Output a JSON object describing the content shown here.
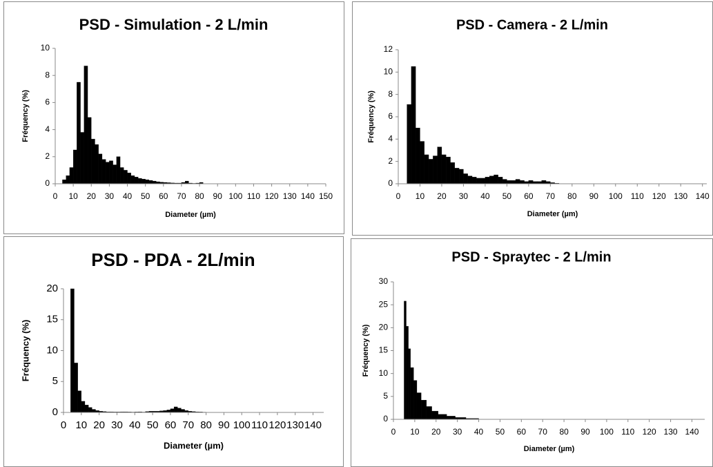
{
  "chart_data": [
    {
      "type": "histogram",
      "title": "PSD - Simulation - 2 L/min",
      "x_label": "Diameter (µm)",
      "y_label": "Fréquency (%)",
      "color": "#000000",
      "grid": false,
      "bins": [
        4,
        6,
        8,
        10,
        12,
        14,
        16,
        18,
        20,
        22,
        24,
        26,
        28,
        30,
        32,
        34,
        36,
        38,
        40,
        42,
        44,
        46,
        48,
        50,
        52,
        54,
        56,
        58,
        60,
        62,
        64,
        66,
        68,
        70,
        72,
        74,
        76,
        78,
        80,
        82
      ],
      "values": [
        0.3,
        0.6,
        1.2,
        2.5,
        7.5,
        3.8,
        8.7,
        4.9,
        3.3,
        2.9,
        2.2,
        1.8,
        1.6,
        1.7,
        1.4,
        2.0,
        1.2,
        1.0,
        0.8,
        0.6,
        0.5,
        0.4,
        0.35,
        0.3,
        0.25,
        0.2,
        0.15,
        0.12,
        0.1,
        0.08,
        0.06,
        0.05,
        0.05,
        0.1,
        0.2,
        0.05,
        0.03,
        0.05,
        0.1
      ],
      "xlim": [
        0,
        150
      ],
      "xticks": [
        0,
        10,
        20,
        30,
        40,
        50,
        60,
        70,
        80,
        90,
        100,
        110,
        120,
        130,
        140,
        150
      ],
      "ylim": [
        0,
        10
      ],
      "yticks": [
        0,
        2,
        4,
        6,
        8,
        10
      ]
    },
    {
      "type": "histogram",
      "title": "PSD - Camera - 2 L/min",
      "x_label": "Diameter (µm)",
      "y_label": "Fréquency (%)",
      "color": "#000000",
      "grid": false,
      "bins": [
        4,
        6,
        8,
        10,
        12,
        14,
        16,
        18,
        20,
        22,
        24,
        26,
        28,
        30,
        32,
        34,
        36,
        38,
        40,
        42,
        44,
        46,
        48,
        50,
        52,
        54,
        56,
        58,
        60,
        62,
        64,
        66,
        68,
        70,
        72,
        74
      ],
      "values": [
        7.1,
        10.5,
        5.0,
        3.8,
        2.6,
        2.2,
        2.5,
        3.3,
        2.6,
        2.4,
        1.9,
        1.4,
        1.3,
        0.9,
        0.7,
        0.6,
        0.5,
        0.5,
        0.6,
        0.7,
        0.8,
        0.6,
        0.4,
        0.3,
        0.3,
        0.4,
        0.3,
        0.2,
        0.3,
        0.2,
        0.2,
        0.3,
        0.2,
        0.1,
        0.05
      ],
      "xlim": [
        0,
        142
      ],
      "xticks": [
        0,
        10,
        20,
        30,
        40,
        50,
        60,
        70,
        80,
        90,
        100,
        110,
        120,
        130,
        140
      ],
      "ylim": [
        0,
        12
      ],
      "yticks": [
        0,
        2,
        4,
        6,
        8,
        10,
        12
      ]
    },
    {
      "type": "histogram",
      "title": "PSD - PDA - 2L/min",
      "x_label": "Diameter (µm)",
      "y_label": "Fréquency (%)",
      "color": "#000000",
      "grid": false,
      "bins": [
        4,
        6,
        8,
        10,
        12,
        14,
        16,
        18,
        20,
        22,
        24,
        26,
        28,
        30,
        32,
        34,
        36,
        38,
        40,
        42,
        44,
        46,
        48,
        50,
        52,
        54,
        56,
        58,
        60,
        62,
        64,
        66,
        68,
        70,
        72,
        74,
        76,
        78,
        80
      ],
      "values": [
        20,
        8,
        3.5,
        1.8,
        1.2,
        0.8,
        0.5,
        0.3,
        0.2,
        0.15,
        0.1,
        0.1,
        0.08,
        0.08,
        0.1,
        0.1,
        0.08,
        0.06,
        0.08,
        0.1,
        0.06,
        0.15,
        0.2,
        0.2,
        0.2,
        0.25,
        0.3,
        0.4,
        0.6,
        0.9,
        0.7,
        0.5,
        0.3,
        0.2,
        0.15,
        0.1,
        0.08,
        0.05
      ],
      "xlim": [
        0,
        146
      ],
      "xticks": [
        0,
        10,
        20,
        30,
        40,
        50,
        60,
        70,
        80,
        90,
        100,
        110,
        120,
        130,
        140
      ],
      "ylim": [
        0,
        20
      ],
      "yticks": [
        0,
        5,
        10,
        15,
        20
      ]
    },
    {
      "type": "histogram",
      "title": "PSD - Spraytec - 2 L/min",
      "x_label": "Diameter (µm)",
      "y_label": "Fréquency (%)",
      "color": "#000000",
      "grid": false,
      "bins": [
        5,
        6,
        7,
        8,
        9.5,
        11,
        13,
        15.5,
        18,
        21,
        25,
        29,
        34,
        40
      ],
      "values": [
        25.8,
        20.3,
        15.4,
        11.3,
        8.5,
        5.8,
        4.2,
        2.8,
        1.8,
        1.1,
        0.7,
        0.4,
        0.2
      ],
      "xlim": [
        0,
        146
      ],
      "xticks": [
        0,
        10,
        20,
        30,
        40,
        50,
        60,
        70,
        80,
        90,
        100,
        110,
        120,
        130,
        140
      ],
      "ylim": [
        0,
        30
      ],
      "yticks": [
        0,
        5,
        10,
        15,
        20,
        25,
        30
      ]
    }
  ]
}
